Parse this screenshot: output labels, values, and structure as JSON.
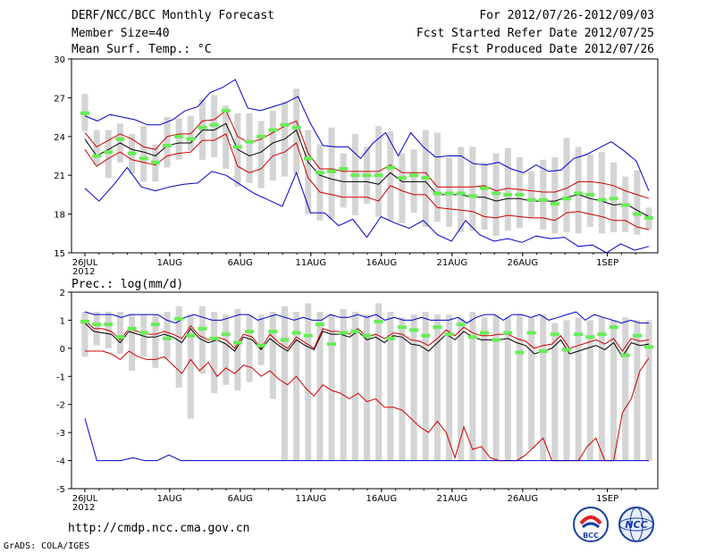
{
  "header": {
    "title": "DERF/NCC/BCC Monthly Forecast",
    "member_size": "Member Size=40",
    "variable_top": "Mean Surf. Temp.: °C",
    "forecast_period": "For 2012/07/26-2012/09/03",
    "start_refer_date": "Fcst Started Refer Date 2012/07/25",
    "produced_date": "Fcst Produced Date 2012/07/26"
  },
  "precip_label": "Prec.: log(mm/d)",
  "footer": {
    "url": "http://cmdp.ncc.cma.gov.cn",
    "credit": "GrADS: COLA/IGES",
    "logo_left_text": "BCC",
    "logo_right_text": "NCC"
  },
  "colors": {
    "envelope": "#0000cc",
    "spread": "#cc0000",
    "mean": "#000000",
    "reference": "#66ee55",
    "box": "#d4d4d4"
  },
  "chart_data": [
    {
      "id": "temperature",
      "type": "line",
      "title": "Mean Surf. Temp.: °C",
      "ylim": [
        15,
        30
      ],
      "yticks": [
        15,
        18,
        21,
        24,
        27,
        30
      ],
      "xticks": [
        {
          "day": 0,
          "label": "26JUL",
          "sub": "2012"
        },
        {
          "day": 6,
          "label": "1AUG"
        },
        {
          "day": 11,
          "label": "6AUG"
        },
        {
          "day": 16,
          "label": "11AUG"
        },
        {
          "day": 21,
          "label": "16AUG"
        },
        {
          "day": 26,
          "label": "21AUG"
        },
        {
          "day": 31,
          "label": "26AUG"
        },
        {
          "day": 37,
          "label": "1SEP"
        }
      ],
      "days": 40,
      "series": [
        {
          "name": "ensemble-mean",
          "values": [
            23.8,
            22.5,
            23,
            23.5,
            23,
            22.8,
            22.5,
            23.3,
            23.5,
            23.5,
            24.5,
            24.5,
            25,
            23,
            22.5,
            22.8,
            23.5,
            23.8,
            24.5,
            22,
            21,
            20.7,
            20.5,
            20.5,
            20.5,
            20.3,
            21.2,
            20.5,
            20.5,
            20.5,
            19.5,
            19.5,
            19.5,
            19.3,
            19.3,
            19,
            19.2,
            19.2,
            19,
            19,
            19,
            19.3,
            19.5,
            19.2,
            19,
            18.7,
            18.8,
            18.3,
            17.8
          ]
        },
        {
          "name": "spread-upper",
          "values": [
            24.3,
            23.2,
            23.7,
            24.2,
            23.8,
            23.2,
            23,
            24,
            24.2,
            24.2,
            25.2,
            25.3,
            26,
            24,
            23.5,
            23.8,
            24.3,
            24.8,
            25.2,
            22.7,
            21.5,
            21.5,
            21.3,
            21.3,
            21.3,
            21.3,
            21.8,
            21.2,
            21.2,
            21.2,
            20.1,
            20.1,
            20.1,
            20.1,
            20.2,
            19.8,
            20,
            19.9,
            19.8,
            19.7,
            19.7,
            20,
            20.5,
            20.5,
            20.4,
            20.2,
            19.8,
            19.5,
            19.2
          ]
        },
        {
          "name": "spread-lower",
          "values": [
            23,
            21.7,
            22.3,
            22.8,
            22.2,
            22,
            21.8,
            22.5,
            22.7,
            22.8,
            23.7,
            23.7,
            24.2,
            21.7,
            21.2,
            21.5,
            22.5,
            22.8,
            23.5,
            20.8,
            19.7,
            19.5,
            19.3,
            19.3,
            19.3,
            19,
            20.2,
            19.8,
            19.5,
            19.5,
            18.5,
            18.4,
            18.3,
            18.2,
            17.8,
            17.7,
            17.9,
            17.8,
            17.7,
            17.7,
            17.5,
            18.1,
            18.2,
            18,
            17.8,
            17.5,
            17.5,
            17,
            16.8
          ]
        },
        {
          "name": "envelope-upper",
          "values": [
            25.6,
            25.2,
            25.7,
            25.5,
            25.3,
            24.9,
            24.9,
            25.3,
            26,
            26.3,
            27.4,
            27.8,
            28.4,
            26.2,
            26,
            26.3,
            26.6,
            27.1,
            25,
            23.3,
            23.2,
            23.2,
            22.3,
            23.5,
            24.3,
            22.5,
            24.3,
            23.2,
            22.4,
            22.5,
            22.5,
            21.9,
            21.8,
            22,
            21.5,
            21.2,
            21.8,
            21.3,
            21.4,
            22.3,
            22.6,
            23.1,
            23.6,
            22.9,
            22.1,
            19.8
          ]
        },
        {
          "name": "envelope-lower",
          "values": [
            20,
            19,
            20.2,
            21.6,
            20.1,
            19.8,
            20.1,
            20.3,
            20.4,
            21.3,
            21,
            20.3,
            19.6,
            19.1,
            18.6,
            21.2,
            18.1,
            18.1,
            17.1,
            17.6,
            16.2,
            17.8,
            17.3,
            16.9,
            17.5,
            16.4,
            15.9,
            17.5,
            16.4,
            15.9,
            16.1,
            15.8,
            16.3,
            16.1,
            16.2,
            15.5,
            15.6,
            15,
            15.7,
            15.2,
            15.5
          ]
        },
        {
          "name": "reference-mean",
          "values": [
            25.8,
            22.5,
            22.8,
            23.8,
            22.7,
            22.3,
            22,
            23.3,
            24,
            23.8,
            24.7,
            24.9,
            26,
            23.2,
            23.6,
            24,
            24.5,
            24.9,
            24.7,
            22.3,
            21.2,
            21.3,
            21.5,
            21,
            21,
            21,
            21.6,
            20.8,
            21,
            20.8,
            19.6,
            19.6,
            19.6,
            19.4,
            20,
            19.6,
            19.5,
            19.5,
            19.1,
            19.1,
            18.8,
            19.2,
            19.6,
            19.5,
            19.1,
            19.2,
            18.7,
            18,
            17.7
          ]
        }
      ],
      "box_ranges": [
        [
          24.4,
          27.3
        ],
        [
          21.8,
          24.5
        ],
        [
          20.8,
          24.5
        ],
        [
          22,
          25
        ],
        [
          21.1,
          24.2
        ],
        [
          20.5,
          24.8
        ],
        [
          20.5,
          23.4
        ],
        [
          21.6,
          25.5
        ],
        [
          22.2,
          25.4
        ],
        [
          22.9,
          25.6
        ],
        [
          22.2,
          26.9
        ],
        [
          22.4,
          27.2
        ],
        [
          21.5,
          26.4
        ],
        [
          20.1,
          25.8
        ],
        [
          20.4,
          25.8
        ],
        [
          20,
          25.2
        ],
        [
          20.6,
          26
        ],
        [
          20.9,
          26.7
        ],
        [
          21.1,
          27.7
        ],
        [
          18,
          24.5
        ],
        [
          17.5,
          23.4
        ],
        [
          17.6,
          24.7
        ],
        [
          18.5,
          22.7
        ],
        [
          17.9,
          24.2
        ],
        [
          18.8,
          23.2
        ],
        [
          17.8,
          24.8
        ],
        [
          17.5,
          24.4
        ],
        [
          17.3,
          22.7
        ],
        [
          18.1,
          23
        ],
        [
          17,
          24.5
        ],
        [
          17.4,
          24.3
        ],
        [
          17,
          22.4
        ],
        [
          16.6,
          23.2
        ],
        [
          16.7,
          23.2
        ],
        [
          16.8,
          22
        ],
        [
          16.3,
          22.7
        ],
        [
          16.7,
          23.1
        ],
        [
          16.9,
          22.4
        ],
        [
          17.7,
          21.3
        ],
        [
          16.8,
          22.2
        ],
        [
          16.5,
          22.4
        ],
        [
          16.6,
          23.9
        ],
        [
          16.5,
          23.2
        ],
        [
          17,
          22.6
        ],
        [
          16.5,
          22.8
        ],
        [
          16.6,
          22
        ],
        [
          16.6,
          20.9
        ],
        [
          16.4,
          21.4
        ],
        [
          16.8,
          18.5
        ]
      ]
    },
    {
      "id": "precipitation",
      "type": "line",
      "title": "Prec.: log(mm/d)",
      "ylim": [
        -5,
        2
      ],
      "yticks": [
        -5,
        -4,
        -3,
        -2,
        -1,
        0,
        1,
        2
      ],
      "xticks": [
        {
          "day": 0,
          "label": "26JUL",
          "sub": "2012"
        },
        {
          "day": 6,
          "label": "1AUG"
        },
        {
          "day": 11,
          "label": "6AUG"
        },
        {
          "day": 16,
          "label": "11AUG"
        },
        {
          "day": 21,
          "label": "16AUG"
        },
        {
          "day": 26,
          "label": "21AUG"
        },
        {
          "day": 31,
          "label": "26AUG"
        },
        {
          "day": 37,
          "label": "1SEP"
        }
      ],
      "days": 40,
      "series": [
        {
          "name": "ensemble-mean",
          "values": [
            0.9,
            0.6,
            0.55,
            0.5,
            0.2,
            0.6,
            0.5,
            0.4,
            0.4,
            0.5,
            0.4,
            0.2,
            0.7,
            0.35,
            0.2,
            0.3,
            0.15,
            -0.1,
            0.4,
            0.3,
            -0.05,
            0.35,
            0.1,
            -0.1,
            0.3,
            0.1,
            -0.05,
            0.6,
            0.5,
            0.5,
            0.4,
            0.6,
            0.3,
            0.4,
            0.2,
            0.45,
            0.4,
            0.15,
            0.1,
            -0.1,
            0.2,
            0.5,
            0.3,
            0.6,
            0.4,
            0.3,
            0.3,
            0.3,
            0.35,
            0.2,
            0.1,
            -0.2,
            -0.1,
            0.0,
            0.3,
            -0.2,
            -0.1,
            0.0,
            0.1,
            -0.05,
            0.2,
            -0.3,
            0.2,
            0.1,
            0.15
          ]
        },
        {
          "name": "spread-upper",
          "values": [
            1.0,
            0.7,
            0.7,
            0.6,
            0.3,
            0.7,
            0.6,
            0.5,
            0.5,
            0.6,
            0.5,
            0.35,
            0.8,
            0.45,
            0.3,
            0.4,
            0.3,
            0.0,
            0.5,
            0.4,
            0.0,
            0.5,
            0.2,
            0.0,
            0.4,
            0.2,
            0.0,
            0.7,
            0.6,
            0.6,
            0.5,
            0.7,
            0.4,
            0.5,
            0.35,
            0.55,
            0.5,
            0.3,
            0.25,
            0.1,
            0.35,
            0.65,
            0.45,
            0.75,
            0.55,
            0.45,
            0.45,
            0.5,
            0.5,
            0.35,
            0.25,
            0.0,
            0.1,
            0.15,
            0.45,
            0.0,
            0.1,
            0.2,
            0.3,
            0.15,
            0.35,
            -0.1,
            0.35,
            0.25,
            0.3
          ]
        },
        {
          "name": "spread-lower",
          "values": [
            -0.1,
            -0.1,
            -0.1,
            -0.2,
            -0.4,
            -0.1,
            -0.3,
            -0.4,
            -0.4,
            -0.3,
            -0.6,
            -0.9,
            -0.4,
            -0.8,
            -0.5,
            -1.0,
            -0.7,
            -0.9,
            -0.6,
            -0.7,
            -1.0,
            -0.8,
            -1.1,
            -1.3,
            -1.0,
            -1.4,
            -1.7,
            -1.3,
            -1.5,
            -1.6,
            -1.8,
            -1.6,
            -1.9,
            -1.8,
            -2.1,
            -2.1,
            -2.2,
            -2.5,
            -2.8,
            -3.0,
            -2.6,
            -3.0,
            -3.9,
            -2.8,
            -3.6,
            -3.5,
            -3.9,
            -4.0,
            -4.0,
            -4.0,
            -3.8,
            -3.5,
            -3.2,
            -4.0,
            -4.0,
            -4.0,
            -4.0,
            -3.5,
            -3.2,
            -4.0,
            -4.0,
            -2.3,
            -1.8,
            -0.8,
            -0.35
          ]
        },
        {
          "name": "envelope-upper",
          "values": [
            1.3,
            1.2,
            1.2,
            1.2,
            1.1,
            1.2,
            1.2,
            1.2,
            1.2,
            1.0,
            0.9,
            1.1,
            1.2,
            1.1,
            1.0,
            1.0,
            1.1,
            1.2,
            1.2,
            1.0,
            1.1,
            1.2,
            1.1,
            1.0,
            1.1,
            1.0,
            1.0,
            1.2,
            1.1,
            1.1,
            1.2,
            1.1,
            1.2,
            1.0,
            1.1,
            1.0,
            1.0,
            1.1,
            1.0,
            1.0,
            1.0,
            1.1,
            0.9,
            1.1,
            1.2,
            1.2,
            1.0,
            1.2,
            1.2,
            1.1,
            1.2,
            1.0,
            1.1,
            1.2,
            1.3,
            1.0,
            1.2,
            1.1,
            1.0,
            0.9,
            1.0,
            0.9,
            0.9
          ]
        },
        {
          "name": "envelope-lower",
          "values": [
            -2.5,
            -4.0,
            -4.0,
            -4.0,
            -3.9,
            -4.0,
            -4.0,
            -3.8,
            -4.0,
            -4.0,
            -4.0,
            -4.0,
            -4.0,
            -4.0,
            -4.0,
            -4.0,
            -4.0,
            -4.0,
            -4.0,
            -4.0,
            -4.0,
            -4.0,
            -4.0,
            -4.0,
            -4.0,
            -4.0,
            -4.0,
            -4.0,
            -4.0,
            -4.0,
            -4.0,
            -4.0,
            -4.0,
            -4.0,
            -4.0,
            -4.0,
            -4.0,
            -4.0,
            -4.0,
            -4.0,
            -4.0,
            -4.0,
            -4.0,
            -4.0,
            -4.0,
            -4.0,
            -4.0,
            -4.0
          ]
        },
        {
          "name": "reference-mean",
          "values": [
            0.95,
            0.85,
            0.85,
            0.4,
            0.7,
            0.55,
            0.85,
            0.35,
            1.05,
            0.45,
            0.7,
            0.35,
            0.5,
            0.2,
            0.6,
            0.1,
            0.6,
            0.3,
            0.55,
            0.45,
            0.85,
            0.15,
            0.55,
            0.6,
            0.45,
            0.95,
            0.35,
            0.75,
            0.65,
            0.45,
            0.75,
            0.5,
            0.85,
            0.4,
            0.55,
            0.3,
            0.55,
            -0.15,
            0.55,
            -0.1,
            0.5,
            -0.05,
            0.5,
            0.4,
            0.5,
            0.75,
            -0.25,
            0.45,
            0.05
          ]
        }
      ],
      "box_ranges": [
        [
          -0.3,
          1.3
        ],
        [
          0.1,
          1.3
        ],
        [
          0.0,
          1.3
        ],
        [
          -0.2,
          1.3
        ],
        [
          -0.8,
          1.2
        ],
        [
          -0.3,
          1.2
        ],
        [
          -0.7,
          1.2
        ],
        [
          -0.4,
          1.3
        ],
        [
          -1.4,
          1.5
        ],
        [
          -2.5,
          1.2
        ],
        [
          -0.9,
          1.5
        ],
        [
          -1.6,
          1.3
        ],
        [
          -1.3,
          1.2
        ],
        [
          -1.5,
          1.4
        ],
        [
          -1.2,
          1.2
        ],
        [
          -0.6,
          1.2
        ],
        [
          -1.8,
          1.3
        ],
        [
          -4.0,
          1.5
        ],
        [
          -4.0,
          1.3
        ],
        [
          -4.0,
          1.6
        ],
        [
          -4.0,
          1.3
        ],
        [
          -4.0,
          1.2
        ],
        [
          -4.0,
          1.4
        ],
        [
          -4.0,
          1.3
        ],
        [
          -4.0,
          1.2
        ],
        [
          -4.0,
          1.6
        ],
        [
          -4.0,
          1.3
        ],
        [
          -4.0,
          1.1
        ],
        [
          -4.0,
          1.2
        ],
        [
          -4.0,
          1.3
        ],
        [
          -4.0,
          1.2
        ],
        [
          -4.0,
          1.2
        ],
        [
          -4.0,
          1.1
        ],
        [
          -4.0,
          1.3
        ],
        [
          -4.0,
          1.1
        ],
        [
          -4.0,
          1.2
        ],
        [
          -4.0,
          1.1
        ],
        [
          -4.0,
          1.2
        ],
        [
          -3.6,
          1.1
        ],
        [
          -4.0,
          1.2
        ],
        [
          -4.0,
          0.9
        ],
        [
          -4.0,
          1.0
        ],
        [
          -4.0,
          1.1
        ],
        [
          -4.0,
          1.0
        ],
        [
          -4.0,
          1.1
        ],
        [
          -4.0,
          1.0
        ],
        [
          -4.0,
          1.1
        ],
        [
          -4.0,
          1.0
        ],
        [
          -4.0,
          1.0
        ]
      ]
    }
  ]
}
